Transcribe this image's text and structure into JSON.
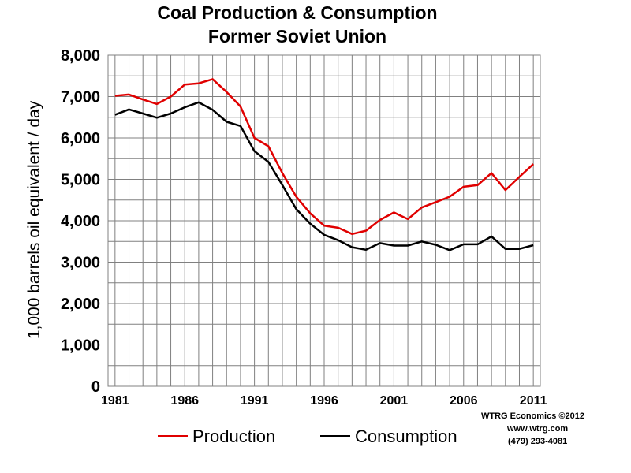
{
  "chart_data": {
    "type": "line",
    "title_line1": "Coal Production & Consumption",
    "title_line2": "Former Soviet Union",
    "ylabel": "1,000 barrels oil equivalent / day",
    "xlabel": "",
    "xlim": [
      1980.5,
      2011.5
    ],
    "ylim": [
      0,
      8000
    ],
    "grid": true,
    "x_ticks": [
      1981,
      1986,
      1991,
      1996,
      2001,
      2006,
      2011
    ],
    "y_ticks": [
      0,
      1000,
      2000,
      3000,
      4000,
      5000,
      6000,
      7000,
      8000
    ],
    "x_tick_labels": [
      "1981",
      "1986",
      "1991",
      "1996",
      "2001",
      "2006",
      "2011"
    ],
    "y_tick_labels": [
      "0",
      "1,000",
      "2,000",
      "3,000",
      "4,000",
      "5,000",
      "6,000",
      "7,000",
      "8,000"
    ],
    "x": [
      1981,
      1982,
      1983,
      1984,
      1985,
      1986,
      1987,
      1988,
      1989,
      1990,
      1991,
      1992,
      1993,
      1994,
      1995,
      1996,
      1997,
      1998,
      1999,
      2000,
      2001,
      2002,
      2003,
      2004,
      2005,
      2006,
      2007,
      2008,
      2009,
      2010,
      2011
    ],
    "series": [
      {
        "name": "Production",
        "color": "#e00000",
        "values": [
          7020,
          7050,
          6930,
          6820,
          7000,
          7290,
          7320,
          7420,
          7110,
          6760,
          6000,
          5800,
          5150,
          4580,
          4180,
          3880,
          3830,
          3680,
          3760,
          4020,
          4200,
          4040,
          4320,
          4450,
          4580,
          4820,
          4860,
          5150,
          4740,
          5060,
          5370
        ]
      },
      {
        "name": "Consumption",
        "color": "#000000",
        "values": [
          6560,
          6690,
          6590,
          6490,
          6590,
          6740,
          6860,
          6680,
          6390,
          6290,
          5680,
          5420,
          4860,
          4280,
          3930,
          3660,
          3530,
          3360,
          3300,
          3460,
          3400,
          3400,
          3500,
          3420,
          3290,
          3430,
          3430,
          3620,
          3320,
          3320,
          3410
        ]
      }
    ],
    "legend": {
      "position": "bottom",
      "entries": [
        "Production",
        "Consumption"
      ]
    },
    "credits": [
      "WTRG Economics  ©2012",
      "www.wtrg.com",
      "(479) 293-4081"
    ]
  }
}
